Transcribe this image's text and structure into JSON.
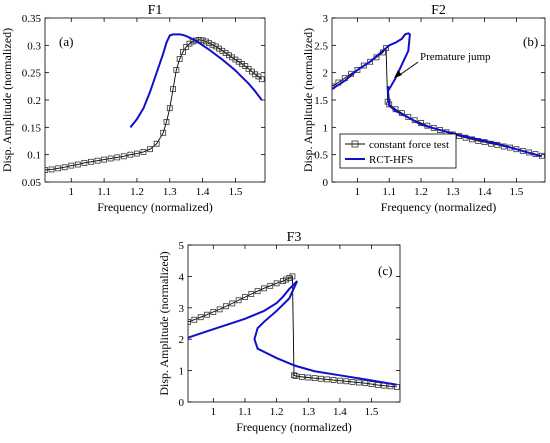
{
  "colors": {
    "rct": "#1010cc",
    "constant": "#000000",
    "marker_edge": "#333333"
  },
  "chart_data": [
    {
      "type": "line",
      "title": "F1",
      "panel_label": "(a)",
      "xlabel": "Frequency (normalized)",
      "ylabel": "Disp. Amplitude (normalized)",
      "xlim": [
        0.92,
        1.59
      ],
      "ylim": [
        0.05,
        0.35
      ],
      "xticks": [
        1,
        1.1,
        1.2,
        1.3,
        1.4,
        1.5
      ],
      "yticks": [
        0.05,
        0.1,
        0.15,
        0.2,
        0.25,
        0.3,
        0.35
      ],
      "xtick_labels": [
        "1",
        "1.1",
        "1.2",
        "1.3",
        "1.4",
        "1.5"
      ],
      "ytick_labels": [
        "0.05",
        "0.1",
        "0.15",
        "0.2",
        "0.25",
        "0.3",
        "0.35"
      ],
      "legend": null,
      "series": [
        {
          "name": "constant force test",
          "style": "marker",
          "x": [
            0.92,
            0.94,
            0.96,
            0.98,
            1.0,
            1.02,
            1.04,
            1.06,
            1.08,
            1.1,
            1.12,
            1.14,
            1.16,
            1.18,
            1.2,
            1.22,
            1.24,
            1.26,
            1.28,
            1.29,
            1.3,
            1.31,
            1.32,
            1.33,
            1.34,
            1.35,
            1.36,
            1.37,
            1.38,
            1.39,
            1.4,
            1.41,
            1.42,
            1.43,
            1.44,
            1.45,
            1.46,
            1.47,
            1.48,
            1.49,
            1.5,
            1.51,
            1.52,
            1.53,
            1.54,
            1.55,
            1.56,
            1.57,
            1.58
          ],
          "y": [
            0.072,
            0.073,
            0.075,
            0.077,
            0.08,
            0.082,
            0.085,
            0.087,
            0.089,
            0.091,
            0.093,
            0.095,
            0.097,
            0.1,
            0.102,
            0.105,
            0.11,
            0.12,
            0.14,
            0.16,
            0.185,
            0.22,
            0.255,
            0.275,
            0.288,
            0.297,
            0.303,
            0.307,
            0.309,
            0.31,
            0.309,
            0.307,
            0.304,
            0.301,
            0.298,
            0.294,
            0.29,
            0.286,
            0.282,
            0.278,
            0.274,
            0.27,
            0.266,
            0.262,
            0.257,
            0.252,
            0.247,
            0.243,
            0.238
          ]
        },
        {
          "name": "RCT-HFS",
          "style": "line",
          "x": [
            1.18,
            1.2,
            1.22,
            1.24,
            1.26,
            1.28,
            1.29,
            1.3,
            1.31,
            1.32,
            1.33,
            1.34,
            1.35,
            1.36,
            1.37,
            1.38,
            1.4,
            1.42,
            1.44,
            1.46,
            1.48,
            1.5,
            1.52,
            1.54,
            1.56,
            1.58
          ],
          "y": [
            0.15,
            0.165,
            0.185,
            0.215,
            0.25,
            0.285,
            0.305,
            0.318,
            0.32,
            0.32,
            0.32,
            0.319,
            0.317,
            0.314,
            0.311,
            0.308,
            0.3,
            0.292,
            0.283,
            0.274,
            0.264,
            0.254,
            0.242,
            0.23,
            0.216,
            0.2
          ]
        }
      ]
    },
    {
      "type": "line",
      "title": "F2",
      "panel_label": "(b)",
      "xlabel": "Frequency (normalized)",
      "ylabel": "Disp. Amplitude (normalized)",
      "xlim": [
        0.92,
        1.59
      ],
      "ylim": [
        0,
        3
      ],
      "xticks": [
        1,
        1.1,
        1.2,
        1.3,
        1.4,
        1.5
      ],
      "yticks": [
        0,
        0.5,
        1,
        1.5,
        2,
        2.5,
        3
      ],
      "xtick_labels": [
        "1",
        "1.1",
        "1.2",
        "1.3",
        "1.4",
        "1.5"
      ],
      "ytick_labels": [
        "0",
        "0.5",
        "1",
        "1.5",
        "2",
        "2.5",
        "3"
      ],
      "legend": {
        "placement": "bottom-left",
        "entries": [
          "constant force test",
          "RCT-HFS"
        ]
      },
      "annotation": {
        "text": "Premature jump",
        "x": 1.115,
        "y": 1.9
      },
      "series": [
        {
          "name": "constant force test",
          "style": "marker",
          "x": [
            0.92,
            0.94,
            0.96,
            0.98,
            1.0,
            1.02,
            1.04,
            1.06,
            1.08,
            1.09,
            1.095,
            1.1,
            1.12,
            1.14,
            1.16,
            1.18,
            1.2,
            1.22,
            1.24,
            1.26,
            1.28,
            1.3,
            1.32,
            1.34,
            1.36,
            1.38,
            1.4,
            1.42,
            1.44,
            1.46,
            1.48,
            1.5,
            1.52,
            1.54,
            1.56,
            1.58
          ],
          "y": [
            1.75,
            1.82,
            1.9,
            1.98,
            2.05,
            2.13,
            2.2,
            2.28,
            2.37,
            2.45,
            1.47,
            1.42,
            1.33,
            1.26,
            1.19,
            1.13,
            1.08,
            1.03,
            0.99,
            0.95,
            0.91,
            0.87,
            0.84,
            0.81,
            0.78,
            0.75,
            0.73,
            0.7,
            0.68,
            0.65,
            0.63,
            0.6,
            0.57,
            0.54,
            0.51,
            0.48
          ]
        },
        {
          "name": "RCT-HFS",
          "style": "line",
          "x": [
            0.92,
            0.96,
            1.0,
            1.04,
            1.08,
            1.1,
            1.12,
            1.14,
            1.15,
            1.16,
            1.165,
            1.16,
            1.14,
            1.12,
            1.1,
            1.095,
            1.1,
            1.12,
            1.16,
            1.2,
            1.26,
            1.32,
            1.38,
            1.44,
            1.5,
            1.56,
            1.58
          ],
          "y": [
            1.7,
            1.85,
            2.05,
            2.2,
            2.4,
            2.5,
            2.55,
            2.62,
            2.7,
            2.72,
            2.7,
            2.4,
            2.15,
            1.9,
            1.7,
            1.75,
            1.4,
            1.3,
            1.18,
            1.05,
            0.95,
            0.86,
            0.78,
            0.7,
            0.6,
            0.5,
            0.47
          ]
        }
      ]
    },
    {
      "type": "line",
      "title": "F3",
      "panel_label": "(c)",
      "xlabel": "Frequency (normalized)",
      "ylabel": "Disp. Amplitude (normalized)",
      "xlim": [
        0.92,
        1.59
      ],
      "ylim": [
        0,
        5
      ],
      "xticks": [
        1,
        1.1,
        1.2,
        1.3,
        1.4,
        1.5
      ],
      "yticks": [
        0,
        1,
        2,
        3,
        4,
        5
      ],
      "xtick_labels": [
        "1",
        "1.1",
        "1.2",
        "1.3",
        "1.4",
        "1.5"
      ],
      "ytick_labels": [
        "0",
        "1",
        "2",
        "3",
        "4",
        "5"
      ],
      "legend": null,
      "series": [
        {
          "name": "constant force test",
          "style": "marker",
          "x": [
            0.92,
            0.94,
            0.96,
            0.98,
            1.0,
            1.02,
            1.04,
            1.06,
            1.08,
            1.1,
            1.12,
            1.14,
            1.16,
            1.18,
            1.2,
            1.22,
            1.23,
            1.24,
            1.25,
            1.255,
            1.26,
            1.28,
            1.3,
            1.32,
            1.34,
            1.36,
            1.38,
            1.4,
            1.42,
            1.44,
            1.46,
            1.48,
            1.5,
            1.52,
            1.54,
            1.56,
            1.58
          ],
          "y": [
            2.55,
            2.62,
            2.7,
            2.78,
            2.87,
            2.95,
            3.05,
            3.14,
            3.24,
            3.34,
            3.44,
            3.53,
            3.62,
            3.7,
            3.78,
            3.85,
            3.9,
            3.95,
            4.0,
            0.85,
            0.83,
            0.8,
            0.78,
            0.76,
            0.74,
            0.72,
            0.7,
            0.68,
            0.66,
            0.64,
            0.62,
            0.6,
            0.57,
            0.54,
            0.52,
            0.5,
            0.48
          ]
        },
        {
          "name": "RCT-HFS",
          "style": "line",
          "x": [
            0.92,
            0.98,
            1.04,
            1.1,
            1.16,
            1.2,
            1.22,
            1.24,
            1.26,
            1.265,
            1.24,
            1.2,
            1.16,
            1.14,
            1.13,
            1.14,
            1.2,
            1.26,
            1.32,
            1.4,
            1.48,
            1.58
          ],
          "y": [
            2.05,
            2.25,
            2.45,
            2.65,
            2.9,
            3.15,
            3.35,
            3.6,
            3.8,
            3.85,
            3.3,
            2.9,
            2.55,
            2.35,
            2.0,
            1.7,
            1.4,
            1.15,
            0.98,
            0.85,
            0.72,
            0.55
          ]
        }
      ]
    }
  ]
}
